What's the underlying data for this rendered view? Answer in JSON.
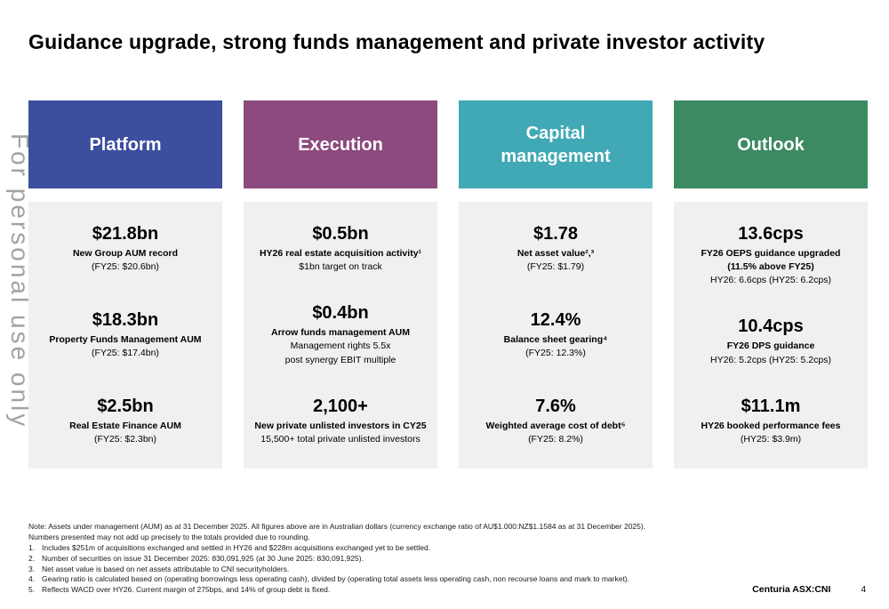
{
  "slide": {
    "title": "Guidance upgrade, strong funds management and private investor activity",
    "watermark": "For personal use only"
  },
  "columns": [
    {
      "header": "Platform",
      "color": "#3C4E9D",
      "items": [
        {
          "value": "$21.8bn",
          "bold": [
            "New Group AUM record"
          ],
          "normal": [
            "(FY25: $20.6bn)"
          ]
        },
        {
          "value": "$18.3bn",
          "bold": [
            "Property Funds Management AUM"
          ],
          "normal": [
            "(FY25: $17.4bn)"
          ]
        },
        {
          "value": "$2.5bn",
          "bold": [
            "Real Estate Finance AUM"
          ],
          "normal": [
            "(FY25: $2.3bn)"
          ]
        }
      ]
    },
    {
      "header": "Execution",
      "color": "#8C4A7E",
      "items": [
        {
          "value": "$0.5bn",
          "bold": [
            "HY26 real estate acquisition activity¹"
          ],
          "normal": [
            "$1bn target on track"
          ]
        },
        {
          "value": "$0.4bn",
          "bold": [
            "Arrow funds management AUM"
          ],
          "normal": [
            "Management rights 5.5x",
            "post synergy EBIT multiple"
          ]
        },
        {
          "value": "2,100+",
          "bold": [
            "New private unlisted investors in CY25"
          ],
          "normal": [
            "15,500+ total private unlisted investors"
          ]
        }
      ]
    },
    {
      "header": "Capital management",
      "color": "#41A8B5",
      "items": [
        {
          "value": "$1.78",
          "bold": [
            "Net asset value²,³"
          ],
          "normal": [
            "(FY25: $1.79)"
          ]
        },
        {
          "value": "12.4%",
          "bold": [
            "Balance sheet gearing⁴"
          ],
          "normal": [
            "(FY25: 12.3%)"
          ]
        },
        {
          "value": "7.6%",
          "bold": [
            "Weighted average cost of debt⁵"
          ],
          "normal": [
            "(FY25: 8.2%)"
          ]
        }
      ]
    },
    {
      "header": "Outlook",
      "color": "#3C8A61",
      "items": [
        {
          "value": "13.6cps",
          "bold": [
            "FY26 OEPS guidance upgraded",
            "(11.5% above FY25)"
          ],
          "normal": [
            "HY26: 6.6cps (HY25: 6.2cps)"
          ]
        },
        {
          "value": "10.4cps",
          "bold": [
            "FY26 DPS guidance"
          ],
          "normal": [
            "HY26: 5.2cps (HY25: 5.2cps)"
          ]
        },
        {
          "value": "$11.1m",
          "bold": [
            "HY26 booked performance fees"
          ],
          "normal": [
            "(HY25: $3.9m)"
          ]
        }
      ]
    }
  ],
  "notes": {
    "lines": [
      "Note: Assets under management (AUM) as at 31 December 2025. All figures above are in Australian dollars (currency exchange ratio of AU$1.000:NZ$1.1584 as at 31 December 2025).",
      "Numbers presented may not add up precisely to the totals provided due to rounding."
    ],
    "items": [
      {
        "num": "1.",
        "text": "Includes $251m of acquisitions exchanged and settled in HY26 and $228m acquisitions exchanged yet to be settled."
      },
      {
        "num": "2.",
        "text": "Number of securities on issue 31 December 2025: 830,091,925 (at 30 June 2025: 830,091,925)."
      },
      {
        "num": "3.",
        "text": "Net asset value is based on net assets attributable to CNI securityholders."
      },
      {
        "num": "4.",
        "text": "Gearing ratio is calculated based on (operating borrowings less operating cash), divided by (operating total assets less operating cash, non recourse loans and mark to market)."
      },
      {
        "num": "5.",
        "text": "Reflects WACD over HY26. Current margin of 275bps, and 14% of group debt is fixed."
      }
    ]
  },
  "footer": {
    "brand": "Centuria ASX:CNI",
    "page": "4"
  }
}
